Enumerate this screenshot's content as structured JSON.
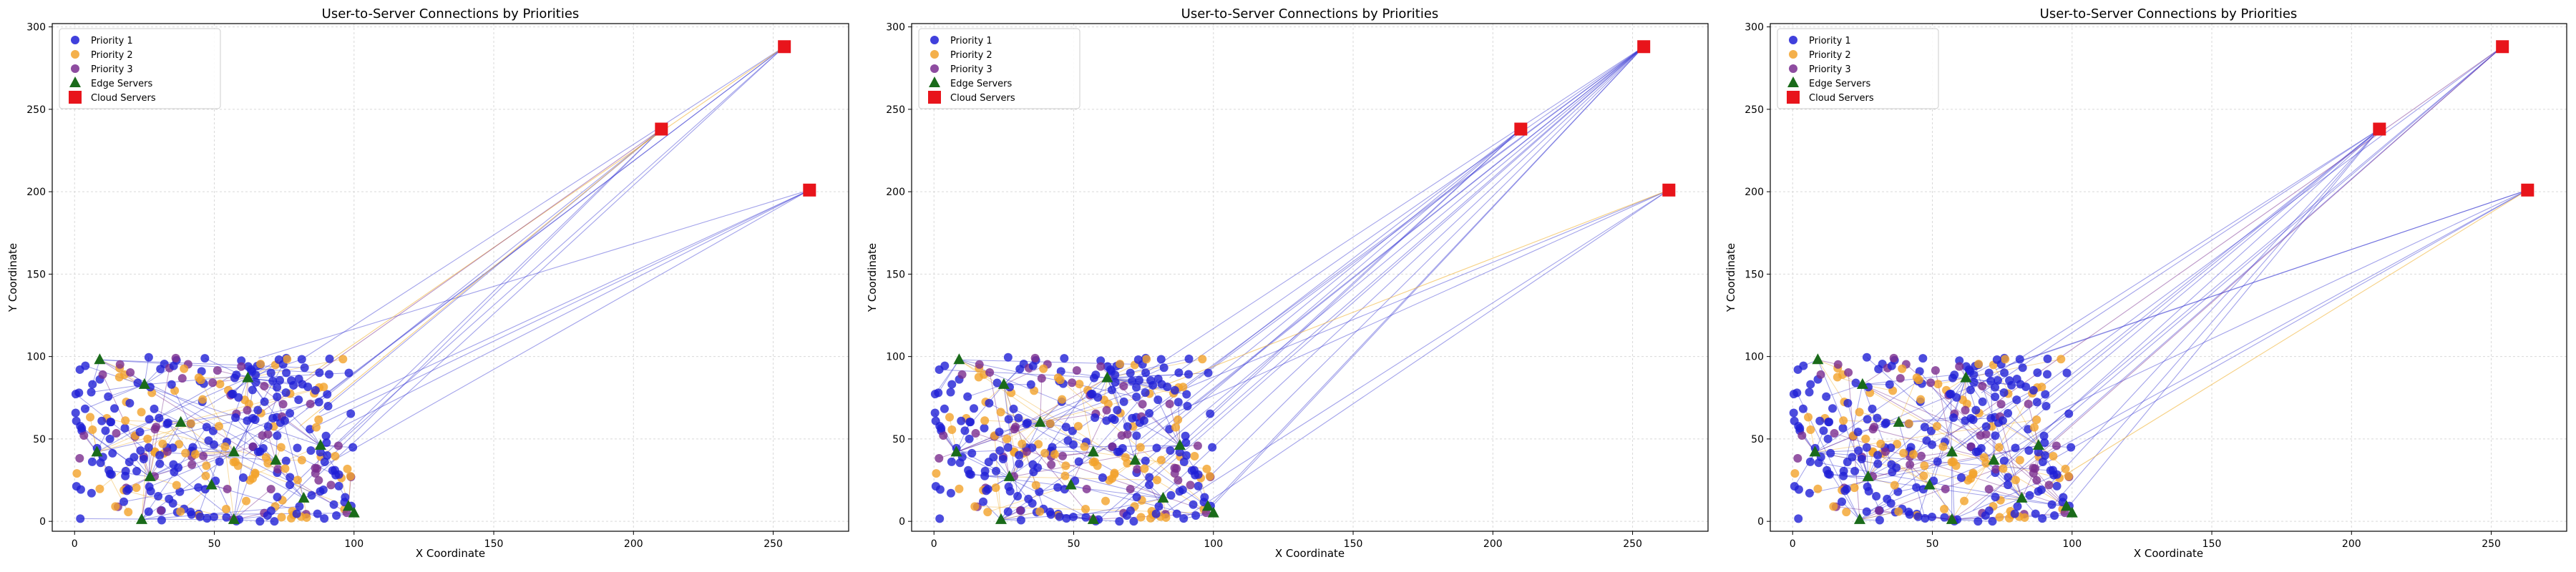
{
  "figure": {
    "colors": {
      "priority1": "#1f1fd6",
      "priority2": "#f2a22b",
      "priority3": "#7a2d8f",
      "edge": "#1a6b1a",
      "cloud": "#e8141b",
      "link_p1": "#3030d0",
      "link_p2": "#f0b030",
      "link_p3": "#7a2d8f"
    }
  },
  "chart_data": [
    {
      "type": "scatter",
      "title": "User-to-Server Connections by Priorities",
      "xlabel": "X Coordinate",
      "ylabel": "Y Coordinate",
      "xlim": [
        -8,
        277
      ],
      "ylim": [
        -6,
        302
      ],
      "xticks": [
        0,
        50,
        100,
        150,
        200,
        250
      ],
      "yticks": [
        0,
        50,
        100,
        150,
        200,
        250,
        300
      ],
      "grid": true,
      "legend_position": "top-left",
      "legend": [
        "Priority 1",
        "Priority 2",
        "Priority 3",
        "Edge Servers",
        "Cloud Servers"
      ],
      "cloud_servers": [
        [
          254,
          288
        ],
        [
          210,
          238
        ],
        [
          263,
          201
        ]
      ],
      "edge_servers": [
        [
          9,
          98
        ],
        [
          8,
          42
        ],
        [
          25,
          83
        ],
        [
          38,
          60
        ],
        [
          62,
          87
        ],
        [
          57,
          42
        ],
        [
          72,
          37
        ],
        [
          88,
          46
        ],
        [
          27,
          27
        ],
        [
          49,
          22
        ],
        [
          82,
          14
        ],
        [
          24,
          1
        ],
        [
          57,
          1
        ],
        [
          100,
          5
        ],
        [
          98,
          9
        ]
      ],
      "cloud_links": {
        "priority1": 14,
        "priority2": 2,
        "priority3": 1
      }
    },
    {
      "type": "scatter",
      "title": "User-to-Server Connections by Priorities",
      "xlabel": "X Coordinate",
      "ylabel": "Y Coordinate",
      "xlim": [
        -8,
        277
      ],
      "ylim": [
        -6,
        302
      ],
      "xticks": [
        0,
        50,
        100,
        150,
        200,
        250
      ],
      "yticks": [
        0,
        50,
        100,
        150,
        200,
        250,
        300
      ],
      "grid": true,
      "legend_position": "top-left",
      "legend": [
        "Priority 1",
        "Priority 2",
        "Priority 3",
        "Edge Servers",
        "Cloud Servers"
      ],
      "cloud_servers": [
        [
          254,
          288
        ],
        [
          210,
          238
        ],
        [
          263,
          201
        ]
      ],
      "edge_servers": [
        [
          9,
          98
        ],
        [
          8,
          42
        ],
        [
          25,
          83
        ],
        [
          38,
          60
        ],
        [
          62,
          87
        ],
        [
          57,
          42
        ],
        [
          72,
          37
        ],
        [
          88,
          46
        ],
        [
          27,
          27
        ],
        [
          49,
          22
        ],
        [
          82,
          14
        ],
        [
          24,
          1
        ],
        [
          57,
          1
        ],
        [
          100,
          5
        ],
        [
          98,
          9
        ]
      ],
      "cloud_links": {
        "priority1": 22,
        "priority2": 1,
        "priority3": 0
      }
    },
    {
      "type": "scatter",
      "title": "User-to-Server Connections by Priorities",
      "xlabel": "X Coordinate",
      "ylabel": "Y Coordinate",
      "xlim": [
        -8,
        277
      ],
      "ylim": [
        -6,
        302
      ],
      "xticks": [
        0,
        50,
        100,
        150,
        200,
        250
      ],
      "yticks": [
        0,
        50,
        100,
        150,
        200,
        250,
        300
      ],
      "grid": true,
      "legend_position": "top-left",
      "legend": [
        "Priority 1",
        "Priority 2",
        "Priority 3",
        "Edge Servers",
        "Cloud Servers"
      ],
      "cloud_servers": [
        [
          254,
          288
        ],
        [
          210,
          238
        ],
        [
          263,
          201
        ]
      ],
      "edge_servers": [
        [
          9,
          98
        ],
        [
          8,
          42
        ],
        [
          25,
          83
        ],
        [
          38,
          60
        ],
        [
          62,
          87
        ],
        [
          57,
          42
        ],
        [
          72,
          37
        ],
        [
          88,
          46
        ],
        [
          27,
          27
        ],
        [
          49,
          22
        ],
        [
          82,
          14
        ],
        [
          24,
          1
        ],
        [
          57,
          1
        ],
        [
          100,
          5
        ],
        [
          98,
          9
        ]
      ],
      "cloud_links": {
        "priority1": 18,
        "priority2": 1,
        "priority3": 2
      }
    }
  ]
}
